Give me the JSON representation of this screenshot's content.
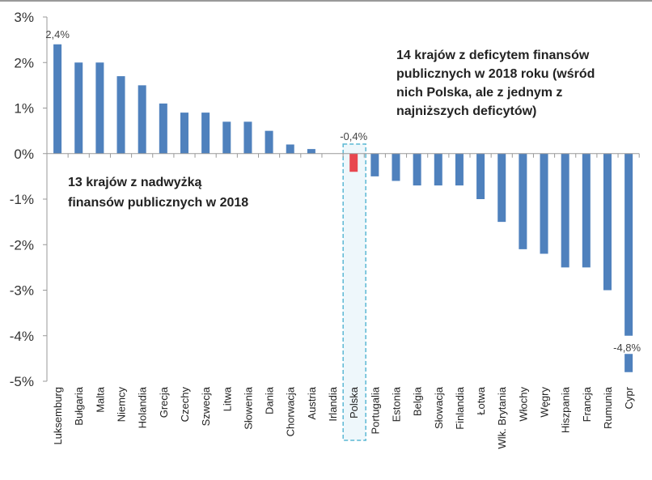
{
  "chart_data": {
    "type": "bar",
    "categories": [
      "Luksemburg",
      "Bułgaria",
      "Malta",
      "Niemcy",
      "Holandia",
      "Grecja",
      "Czechy",
      "Szwecja",
      "Litwa",
      "Słowenia",
      "Dania",
      "Chorwacja",
      "Austria",
      "Irlandia",
      "Polska",
      "Portugalia",
      "Estonia",
      "Belgia",
      "Słowacja",
      "Finlandia",
      "Łotwa",
      "Wlk. Brytania",
      "Włochy",
      "Węgry",
      "Hiszpania",
      "Francja",
      "Rumunia",
      "Cypr"
    ],
    "values": [
      2.4,
      2.0,
      2.0,
      1.7,
      1.5,
      1.1,
      0.9,
      0.9,
      0.7,
      0.7,
      0.5,
      0.2,
      0.1,
      0.0,
      -0.4,
      -0.5,
      -0.6,
      -0.7,
      -0.7,
      -0.7,
      -1.0,
      -1.5,
      -2.1,
      -2.2,
      -2.5,
      -2.5,
      -3.0,
      -4.8
    ],
    "ylim": [
      -5,
      3
    ],
    "yticks": [
      "3%",
      "2%",
      "1%",
      "0%",
      "-1%",
      "-2%",
      "-3%",
      "-4%",
      "-5%"
    ],
    "ytick_values": [
      3,
      2,
      1,
      0,
      -1,
      -2,
      -3,
      -4,
      -5
    ],
    "data_labels": [
      {
        "category": "Luksemburg",
        "text": "2,4%"
      },
      {
        "category": "Polska",
        "text": "-0,4%"
      },
      {
        "category": "Cypr",
        "text": "-4,8%"
      }
    ],
    "highlight": "Polska",
    "colors": {
      "bar": "#4f81bd",
      "highlight": "#e8474f",
      "highlight_box": "#5bb8d4"
    },
    "annotations": {
      "surplus": [
        "13 krajów z nadwyżką",
        "finansów publicznych  w 2018"
      ],
      "deficit": [
        "14 krajów z deficytem finansów",
        "publicznych  w 2018 roku (wśród",
        "nich Polska, ale z jednym z",
        "najniższych deficytów)"
      ]
    },
    "grid": false,
    "legend": "none",
    "xlabel": "",
    "ylabel": "",
    "title": ""
  }
}
